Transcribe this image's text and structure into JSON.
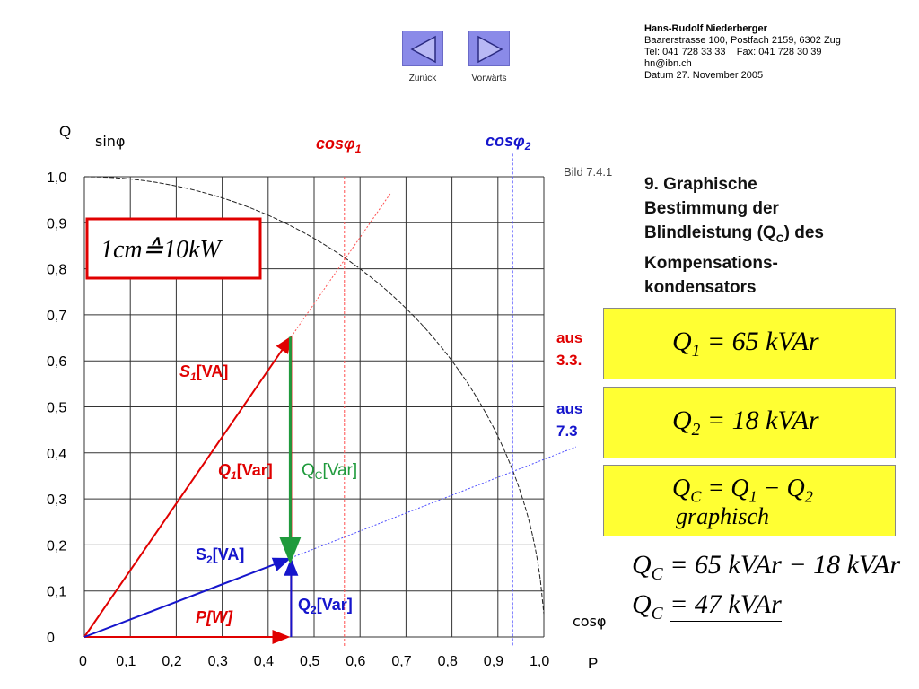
{
  "nav": {
    "back_label": "Zurück",
    "forward_label": "Vorwärts",
    "back_icon": "triangle-left-icon",
    "forward_icon": "triangle-right-icon"
  },
  "contact": {
    "name": "Hans-Rudolf Niederberger",
    "address": "Baarerstrasse 100, Postfach 2159, 6302 Zug",
    "phone": "Tel: 041 728 33 33    Fax: 041 728 30 39",
    "email": "hn@ibn.ch",
    "date": "Datum 27. November 2005"
  },
  "heading": {
    "line1": "9. Graphische",
    "line2": "Bestimmung der",
    "line3_pre": "Blindleistung (Q",
    "line3_sub": "C",
    "line3_post": ") des",
    "line4": "Kompensations-",
    "line5": "kondensators"
  },
  "diagram": {
    "figure_label": "Bild 7.4.1",
    "y_axis_label": "Q",
    "y_axis_sub_label": "sinφ",
    "x_axis_label": "P",
    "x_axis_sub_label": "cosφ",
    "y_ticks": [
      "1,0",
      "0,9",
      "0,8",
      "0,7",
      "0,6",
      "0,5",
      "0,4",
      "0,3",
      "0,2",
      "0,1",
      "0"
    ],
    "x_ticks": [
      "0",
      "0,1",
      "0,2",
      "0,3",
      "0,4",
      "0,5",
      "0,6",
      "0,7",
      "0,8",
      "0,9",
      "1,0"
    ],
    "scale_text": "1cm≙10kW",
    "cos1_label": "cosφ",
    "cos1_sub": "1",
    "cos2_label": "cosφ",
    "cos2_sub": "2",
    "s1_label": "S",
    "s1_sub": "1",
    "s1_unit": "[VA]",
    "s2_label": "S",
    "s2_sub": "2",
    "s2_unit": "[VA]",
    "q1_label": "Q",
    "q1_sub": "1",
    "q1_unit": "[Var]",
    "qc_label": "Q",
    "qc_sub": "C",
    "qc_unit": "[Var]",
    "q2_label": "Q",
    "q2_sub": "2",
    "q2_unit": "[Var]",
    "p_label": "P[W]",
    "colors": {
      "red": "#e00000",
      "blue": "#1515cc",
      "green": "#1f9a3c",
      "grid": "#333333"
    }
  },
  "sources": {
    "src1_line1": "aus",
    "src1_line2": "3.3.",
    "src2_line1": "aus",
    "src2_line2": "7.3"
  },
  "boxes": {
    "box1": {
      "sym": "Q",
      "sub": "1",
      "eq": "= 65 kVAr"
    },
    "box2": {
      "sym": "Q",
      "sub": "2",
      "eq": "= 18 kVAr"
    },
    "box3": {
      "sym": "Q",
      "sub": "C",
      "eq_a": "= Q",
      "eq_a_sub": "1",
      "eq_b": " − Q",
      "eq_b_sub": "2",
      "line2": "graphisch"
    }
  },
  "results": {
    "r1_sym": "Q",
    "r1_sub": "C",
    "r1_eq": "= 65 kVAr − 18 kVAr",
    "r2_sym": "Q",
    "r2_sub": "C",
    "r2_eq": "= 47 kVAr"
  }
}
